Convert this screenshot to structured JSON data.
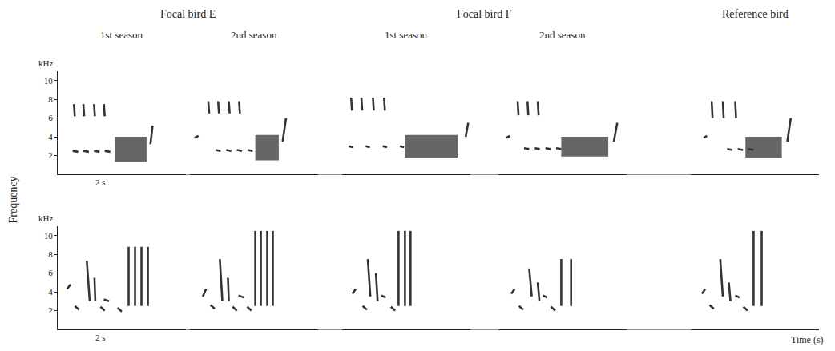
{
  "chart_data": {
    "type": "spectrogram",
    "y_label": "Frequency",
    "x_label": "Time (s)",
    "y_unit": "kHz",
    "xlim": [
      0,
      3
    ],
    "ylim": [
      0,
      11
    ],
    "yticks": [
      2,
      4,
      6,
      8,
      10
    ],
    "tick_labels": "y",
    "color": "#333333",
    "scale_bar": {
      "value": 2,
      "label": "2 s"
    },
    "birds": [
      {
        "name": "Focal bird E",
        "panels": [
          {
            "season": "1st season",
            "songs": [
              {
                "notes": [
                  [
                    0.38,
                    7.5,
                    0.4,
                    6.2
                  ],
                  [
                    0.6,
                    7.5,
                    0.62,
                    6.2
                  ],
                  [
                    0.85,
                    7.5,
                    0.87,
                    6.2
                  ],
                  [
                    1.08,
                    7.5,
                    1.1,
                    6.2
                  ],
                  [
                    0.35,
                    2.5,
                    0.48,
                    2.4
                  ],
                  [
                    0.6,
                    2.5,
                    0.73,
                    2.4
                  ],
                  [
                    0.85,
                    2.5,
                    0.98,
                    2.4
                  ],
                  [
                    1.1,
                    2.5,
                    1.23,
                    2.4
                  ],
                  [
                    2.17,
                    3.2,
                    2.22,
                    5.2
                  ]
                ],
                "trills": [
                  [
                    1.34,
                    2.08,
                    1.3,
                    4.0
                  ]
                ]
              },
              {
                "notes": [
                  [
                    0.22,
                    4.3,
                    0.3,
                    4.8
                  ],
                  [
                    0.4,
                    2.5,
                    0.5,
                    2.1
                  ],
                  [
                    0.68,
                    7.3,
                    0.75,
                    3.0
                  ],
                  [
                    0.86,
                    5.5,
                    0.88,
                    3.0
                  ],
                  [
                    1.0,
                    2.4,
                    1.1,
                    2.0
                  ],
                  [
                    1.08,
                    3.2,
                    1.2,
                    3.0
                  ],
                  [
                    1.4,
                    2.3,
                    1.5,
                    1.9
                  ],
                  [
                    1.66,
                    2.5,
                    1.66,
                    8.8
                  ],
                  [
                    1.81,
                    2.5,
                    1.81,
                    8.8
                  ],
                  [
                    1.96,
                    2.5,
                    1.96,
                    8.8
                  ],
                  [
                    2.11,
                    2.5,
                    2.11,
                    8.8
                  ]
                ]
              }
            ]
          },
          {
            "season": "2nd season",
            "songs": [
              {
                "notes": [
                  [
                    0.11,
                    3.9,
                    0.2,
                    4.1
                  ],
                  [
                    0.43,
                    7.8,
                    0.45,
                    6.5
                  ],
                  [
                    0.66,
                    7.8,
                    0.68,
                    6.5
                  ],
                  [
                    0.91,
                    7.8,
                    0.93,
                    6.5
                  ],
                  [
                    1.15,
                    7.8,
                    1.17,
                    6.5
                  ],
                  [
                    0.6,
                    2.6,
                    0.72,
                    2.5
                  ],
                  [
                    0.85,
                    2.6,
                    0.97,
                    2.5
                  ],
                  [
                    1.1,
                    2.6,
                    1.22,
                    2.5
                  ],
                  [
                    1.35,
                    2.6,
                    1.47,
                    2.5
                  ],
                  [
                    2.17,
                    3.5,
                    2.25,
                    6.0
                  ]
                ],
                "trills": [
                  [
                    1.53,
                    2.08,
                    1.5,
                    4.2
                  ]
                ]
              },
              {
                "notes": [
                  [
                    0.3,
                    3.5,
                    0.38,
                    4.3
                  ],
                  [
                    0.48,
                    2.6,
                    0.58,
                    2.2
                  ],
                  [
                    0.7,
                    7.5,
                    0.76,
                    3.0
                  ],
                  [
                    0.89,
                    5.5,
                    0.91,
                    3.0
                  ],
                  [
                    1.0,
                    2.4,
                    1.1,
                    2.0
                  ],
                  [
                    1.14,
                    3.6,
                    1.26,
                    3.4
                  ],
                  [
                    1.34,
                    2.4,
                    1.44,
                    2.0
                  ],
                  [
                    1.53,
                    2.5,
                    1.53,
                    10.5
                  ],
                  [
                    1.66,
                    2.5,
                    1.66,
                    10.5
                  ],
                  [
                    1.81,
                    2.5,
                    1.81,
                    10.5
                  ],
                  [
                    1.94,
                    2.5,
                    1.94,
                    10.5
                  ]
                ]
              }
            ]
          }
        ]
      },
      {
        "name": "Focal bird F",
        "panels": [
          {
            "season": "1st season",
            "songs": [
              {
                "notes": [
                  [
                    0.21,
                    8.2,
                    0.23,
                    6.8
                  ],
                  [
                    0.45,
                    8.2,
                    0.47,
                    6.8
                  ],
                  [
                    0.72,
                    8.2,
                    0.74,
                    6.8
                  ],
                  [
                    0.98,
                    8.2,
                    1.0,
                    6.8
                  ],
                  [
                    0.15,
                    3.0,
                    0.25,
                    2.9
                  ],
                  [
                    0.55,
                    3.0,
                    0.65,
                    2.9
                  ],
                  [
                    0.95,
                    3.0,
                    1.05,
                    2.9
                  ],
                  [
                    1.35,
                    3.0,
                    1.45,
                    2.9
                  ],
                  [
                    2.89,
                    4.0,
                    2.95,
                    5.5
                  ]
                ],
                "trills": [
                  [
                    1.47,
                    2.7,
                    1.8,
                    4.2
                  ]
                ]
              },
              {
                "notes": [
                  [
                    0.24,
                    3.8,
                    0.32,
                    4.3
                  ],
                  [
                    0.48,
                    2.5,
                    0.58,
                    2.1
                  ],
                  [
                    0.6,
                    7.5,
                    0.66,
                    3.5
                  ],
                  [
                    0.79,
                    6.0,
                    0.83,
                    3.0
                  ],
                  [
                    0.92,
                    3.6,
                    1.02,
                    3.4
                  ],
                  [
                    1.14,
                    2.4,
                    1.24,
                    2.0
                  ],
                  [
                    1.32,
                    2.5,
                    1.32,
                    10.5
                  ],
                  [
                    1.47,
                    2.5,
                    1.47,
                    10.5
                  ],
                  [
                    1.6,
                    2.5,
                    1.6,
                    10.5
                  ]
                ]
              }
            ]
          },
          {
            "season": "2nd season",
            "songs": [
              {
                "notes": [
                  [
                    0.19,
                    3.9,
                    0.27,
                    4.1
                  ],
                  [
                    0.45,
                    7.8,
                    0.47,
                    6.3
                  ],
                  [
                    0.68,
                    7.8,
                    0.7,
                    6.3
                  ],
                  [
                    0.92,
                    7.8,
                    0.94,
                    6.3
                  ],
                  [
                    0.6,
                    2.8,
                    0.72,
                    2.7
                  ],
                  [
                    0.85,
                    2.8,
                    0.97,
                    2.7
                  ],
                  [
                    1.1,
                    2.8,
                    1.22,
                    2.7
                  ],
                  [
                    1.35,
                    2.8,
                    1.47,
                    2.7
                  ],
                  [
                    2.7,
                    3.5,
                    2.78,
                    5.5
                  ]
                ],
                "trills": [
                  [
                    1.47,
                    2.57,
                    1.9,
                    4.0
                  ]
                ]
              },
              {
                "notes": [
                  [
                    0.3,
                    3.8,
                    0.38,
                    4.3
                  ],
                  [
                    0.48,
                    2.5,
                    0.58,
                    2.1
                  ],
                  [
                    0.72,
                    6.5,
                    0.78,
                    3.5
                  ],
                  [
                    0.92,
                    5.0,
                    0.96,
                    3.0
                  ],
                  [
                    1.04,
                    3.6,
                    1.14,
                    3.4
                  ],
                  [
                    1.23,
                    2.4,
                    1.33,
                    2.0
                  ],
                  [
                    1.47,
                    2.5,
                    1.47,
                    7.5
                  ],
                  [
                    1.7,
                    2.5,
                    1.7,
                    7.5
                  ]
                ]
              }
            ]
          }
        ]
      },
      {
        "name": "Reference bird",
        "panels": [
          {
            "songs": [
              {
                "notes": [
                  [
                    0.3,
                    3.9,
                    0.38,
                    4.1
                  ],
                  [
                    0.49,
                    7.8,
                    0.51,
                    6.0
                  ],
                  [
                    0.75,
                    7.8,
                    0.77,
                    6.0
                  ],
                  [
                    1.04,
                    7.8,
                    1.06,
                    6.0
                  ],
                  [
                    0.85,
                    2.7,
                    0.97,
                    2.6
                  ],
                  [
                    1.1,
                    2.7,
                    1.22,
                    2.6
                  ],
                  [
                    1.35,
                    2.7,
                    1.47,
                    2.6
                  ],
                  [
                    2.26,
                    3.5,
                    2.34,
                    6.0
                  ]
                ],
                "trills": [
                  [
                    1.28,
                    2.13,
                    1.8,
                    4.0
                  ]
                ]
              },
              {
                "notes": [
                  [
                    0.26,
                    3.8,
                    0.34,
                    4.3
                  ],
                  [
                    0.44,
                    2.6,
                    0.54,
                    2.2
                  ],
                  [
                    0.69,
                    7.5,
                    0.75,
                    3.5
                  ],
                  [
                    0.89,
                    5.0,
                    0.93,
                    3.0
                  ],
                  [
                    1.04,
                    3.6,
                    1.14,
                    3.4
                  ],
                  [
                    1.23,
                    2.4,
                    1.33,
                    2.0
                  ],
                  [
                    1.47,
                    2.5,
                    1.47,
                    10.5
                  ],
                  [
                    1.66,
                    2.5,
                    1.66,
                    10.5
                  ]
                ]
              }
            ]
          }
        ]
      }
    ]
  }
}
